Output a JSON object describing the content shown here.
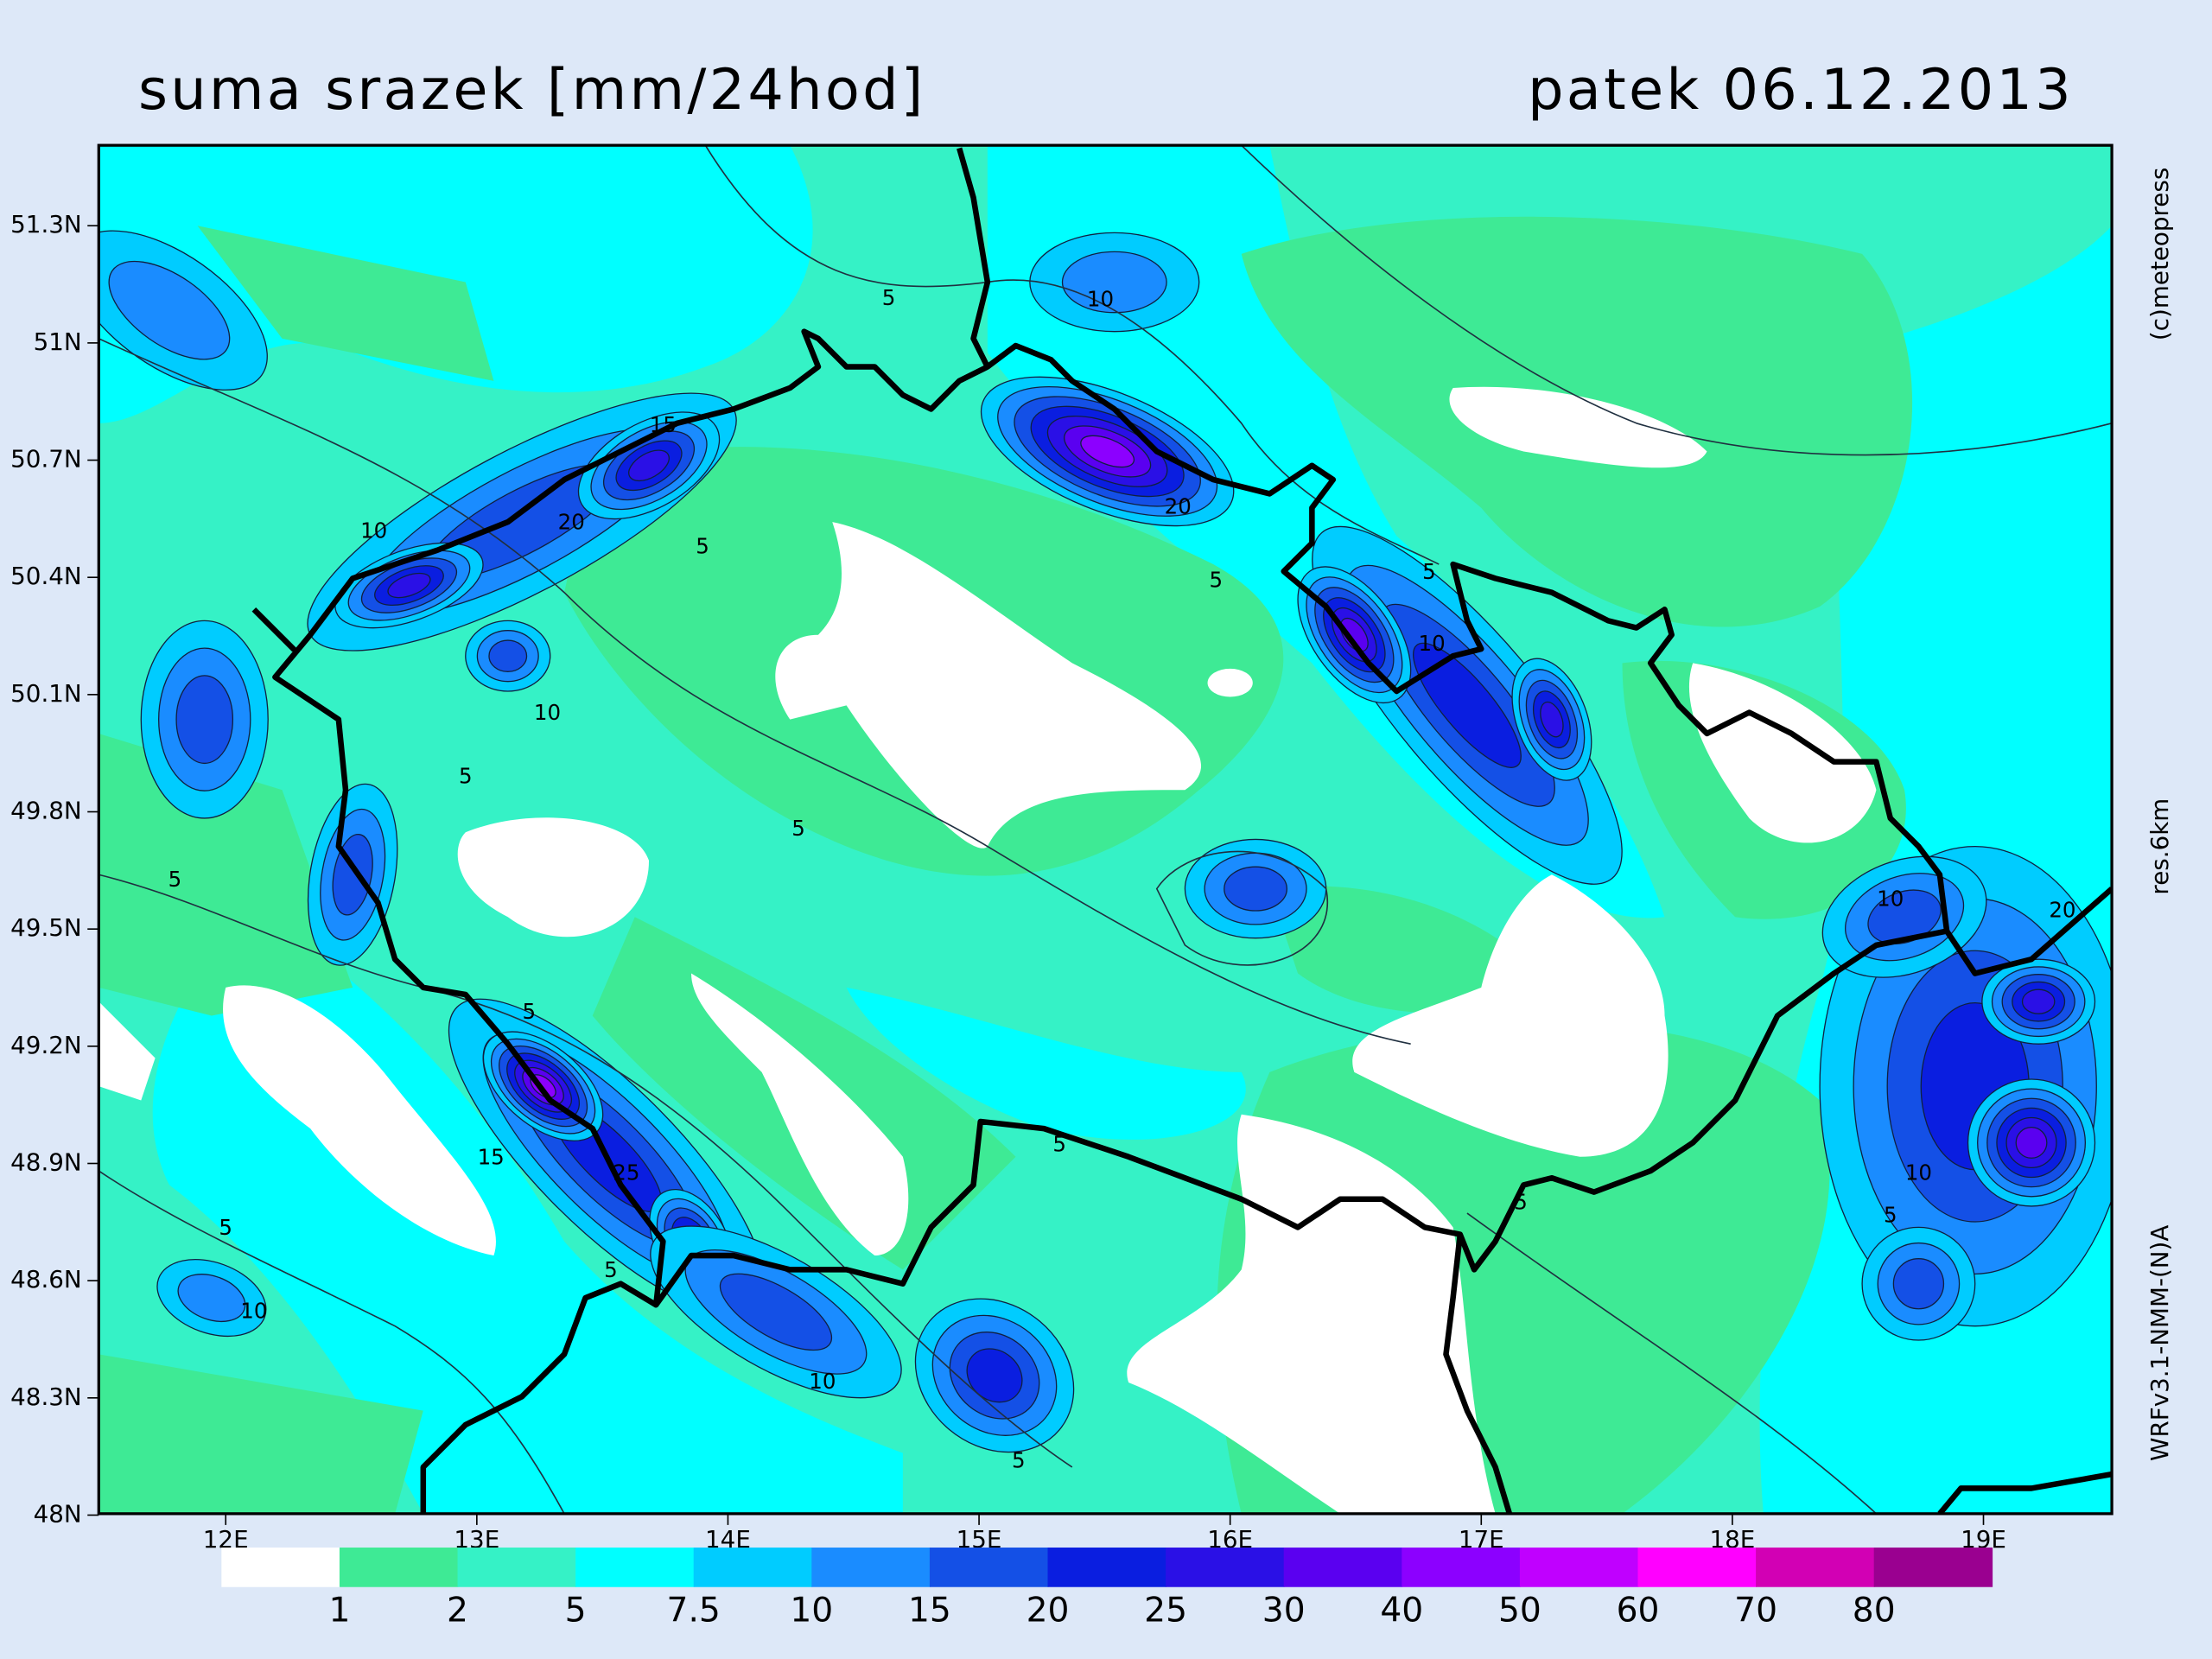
{
  "map": {
    "title": "suma srazek [mm/24hod]",
    "date": "patek 06.12.2013",
    "credit": "(c)meteopress",
    "resolution": "res.6km",
    "model": "WRFv3.1-NMM-(N)A",
    "lat_labels": [
      "51.3N",
      "51N",
      "50.7N",
      "50.4N",
      "50.1N",
      "49.8N",
      "49.5N",
      "49.2N",
      "48.9N",
      "48.6N",
      "48.3N",
      "48N"
    ],
    "lon_labels": [
      "12E",
      "13E",
      "14E",
      "15E",
      "16E",
      "17E",
      "18E",
      "19E"
    ],
    "colorbar": {
      "levels": [
        1,
        2,
        5,
        7.5,
        10,
        15,
        20,
        25,
        30,
        40,
        50,
        60,
        70,
        80
      ],
      "colors": [
        "#ffffff",
        "#3eea95",
        "#35f2c6",
        "#00ffff",
        "#00ccff",
        "#1a8cff",
        "#1450e6",
        "#0a1ee0",
        "#2a10e6",
        "#5a00f0",
        "#8c00ff",
        "#c000ff",
        "#ff00ff",
        "#d200b4",
        "#9a0090"
      ]
    },
    "contour_labels": [
      5,
      10,
      15,
      10,
      20,
      5,
      20,
      5,
      5,
      10,
      10,
      5,
      5,
      5,
      10,
      5,
      15,
      25,
      5,
      5,
      10,
      5,
      10,
      5,
      10,
      5,
      5,
      20
    ]
  }
}
